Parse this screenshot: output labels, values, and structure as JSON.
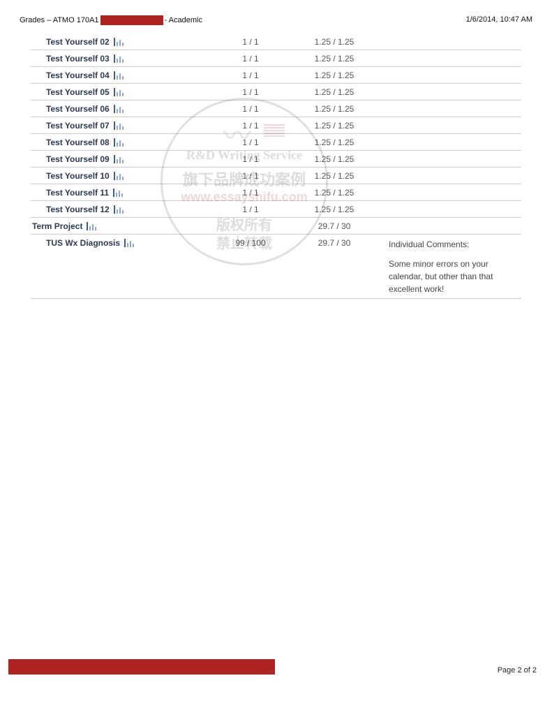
{
  "header": {
    "left_prefix": "Grades – ATMO 170A1",
    "left_suffix": "- Academic",
    "timestamp": "1/6/2014, 10:47 AM"
  },
  "colors": {
    "redaction": "#b02323",
    "row_border": "#cccccc",
    "name_text": "#2b3a55",
    "score_text": "#555555",
    "icon_light": "#8fa6d6",
    "icon_dark": "#3b5aa6"
  },
  "rows": [
    {
      "name": "Test Yourself 02",
      "score": "1 / 1",
      "weighted": "1.25 / 1.25",
      "icon": true,
      "indent": true
    },
    {
      "name": "Test Yourself 03",
      "score": "1 / 1",
      "weighted": "1.25 / 1.25",
      "icon": true,
      "indent": true
    },
    {
      "name": "Test Yourself 04",
      "score": "1 / 1",
      "weighted": "1.25 / 1.25",
      "icon": true,
      "indent": true
    },
    {
      "name": "Test Yourself 05",
      "score": "1 / 1",
      "weighted": "1.25 / 1.25",
      "icon": true,
      "indent": true
    },
    {
      "name": "Test Yourself 06",
      "score": "1 / 1",
      "weighted": "1.25 / 1.25",
      "icon": true,
      "indent": true
    },
    {
      "name": "Test Yourself 07",
      "score": "1 / 1",
      "weighted": "1.25 / 1.25",
      "icon": true,
      "indent": true
    },
    {
      "name": "Test Yourself 08",
      "score": "1 / 1",
      "weighted": "1.25 / 1.25",
      "icon": true,
      "indent": true
    },
    {
      "name": "Test Yourself 09",
      "score": "1 / 1",
      "weighted": "1.25 / 1.25",
      "icon": true,
      "indent": true
    },
    {
      "name": "Test Yourself 10",
      "score": "1 / 1",
      "weighted": "1.25 / 1.25",
      "icon": true,
      "indent": true
    },
    {
      "name": "Test Yourself 11",
      "score": "1 / 1",
      "weighted": "1.25 / 1.25",
      "icon": true,
      "indent": true
    },
    {
      "name": "Test Yourself 12",
      "score": "1 / 1",
      "weighted": "1.25 / 1.25",
      "icon": true,
      "indent": true
    },
    {
      "name": "Term Project",
      "score": "",
      "weighted": "29.7 / 30",
      "icon": true,
      "indent": false
    },
    {
      "name": "TUS Wx Diagnosis",
      "score": "99 / 100",
      "weighted": "29.7 / 30",
      "icon": true,
      "indent": true,
      "comment_title": "Individual Comments:",
      "comment_body": "Some minor errors on your calendar, but other than that excellent work!"
    }
  ],
  "watermark": {
    "line1": "R&D Writing Service",
    "line2": "旗下品牌成功案例",
    "line3": "www.essayshifu.com",
    "line4": "版权所有",
    "line5": "禁止转载",
    "brand": "ESSAYSHIFU"
  },
  "footer": {
    "page_text": "Page 2 of 2"
  }
}
